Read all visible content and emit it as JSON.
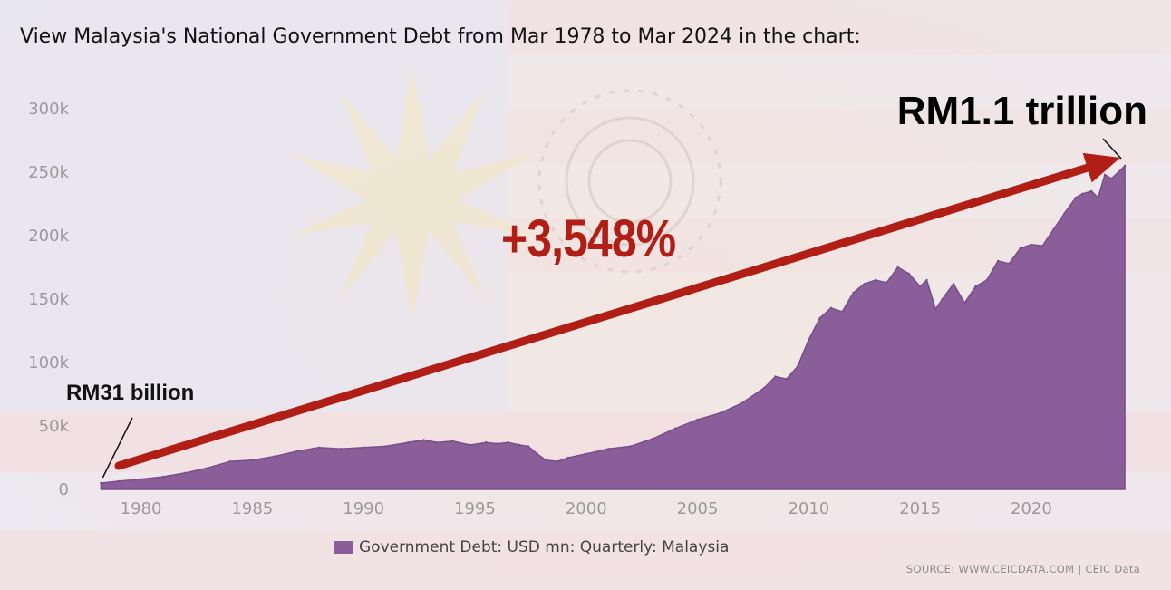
{
  "title": "View Malaysia's National Government Debt from Mar 1978 to Mar 2024 in the chart:",
  "annotations": {
    "growth": "+3,548%",
    "end_label": "RM1.1 trillion",
    "start_label": "RM31 billion"
  },
  "legend_label": "Government Debt: USD mn: Quarterly: Malaysia",
  "source": "SOURCE: WWW.CEICDATA.COM | CEIC Data",
  "colors": {
    "area": "#8a5e99",
    "area_edge": "#7a4d8c",
    "arrow": "#b01e16",
    "tick_text": "#9a9a9a"
  },
  "chart_data": {
    "type": "area",
    "series": [
      {
        "name": "Government Debt: USD mn: Quarterly: Malaysia",
        "x": [
          1978.2,
          1979,
          1980,
          1981,
          1982,
          1983,
          1984,
          1985,
          1986,
          1987,
          1988,
          1989,
          1990,
          1991,
          1992,
          1992.7,
          1993.3,
          1994,
          1994.8,
          1995.5,
          1996,
          1996.5,
          1997,
          1997.4,
          1997.8,
          1998.2,
          1998.7,
          1999.2,
          2000,
          2001,
          2002,
          2003,
          2004,
          2005,
          2006,
          2007,
          2008,
          2008.5,
          2009,
          2009.5,
          2010,
          2010.5,
          2011,
          2011.5,
          2012,
          2012.5,
          2013,
          2013.5,
          2014,
          2014.5,
          2015,
          2015.3,
          2015.7,
          2016,
          2016.5,
          2017,
          2017.5,
          2018,
          2018.5,
          2019,
          2019.5,
          2020,
          2020.5,
          2021,
          2021.5,
          2022,
          2022.3,
          2022.7,
          2023,
          2023.3,
          2023.6,
          2024.2
        ],
        "values": [
          5000,
          6500,
          8000,
          10000,
          13000,
          17000,
          22000,
          23000,
          26000,
          30000,
          33000,
          32000,
          33000,
          34000,
          37000,
          39000,
          37000,
          38000,
          35000,
          37000,
          36000,
          37000,
          35000,
          34000,
          28000,
          23000,
          22000,
          25000,
          28000,
          32000,
          34000,
          40000,
          48000,
          55000,
          60000,
          68000,
          80000,
          89000,
          87000,
          97000,
          118000,
          135000,
          143000,
          140000,
          155000,
          162000,
          165000,
          163000,
          175000,
          170000,
          160000,
          165000,
          142000,
          150000,
          162000,
          147000,
          160000,
          165000,
          180000,
          178000,
          190000,
          193000,
          192000,
          205000,
          218000,
          230000,
          233000,
          235000,
          230000,
          248000,
          245000,
          255000
        ]
      }
    ],
    "x_ticks": [
      1980,
      1985,
      1990,
      1995,
      2000,
      2005,
      2010,
      2015,
      2020
    ],
    "x_tick_labels": [
      "1980",
      "1985",
      "1990",
      "1995",
      "2000",
      "2005",
      "2010",
      "2015",
      "2020"
    ],
    "y_ticks": [
      0,
      50000,
      100000,
      150000,
      200000,
      250000,
      300000
    ],
    "y_tick_labels": [
      "0",
      "50k",
      "100k",
      "150k",
      "200k",
      "250k",
      "300k"
    ],
    "xlim": [
      1977.9,
      2024.4
    ],
    "ylim": [
      0,
      320000
    ],
    "grid": false,
    "legend_position": "bottom"
  }
}
